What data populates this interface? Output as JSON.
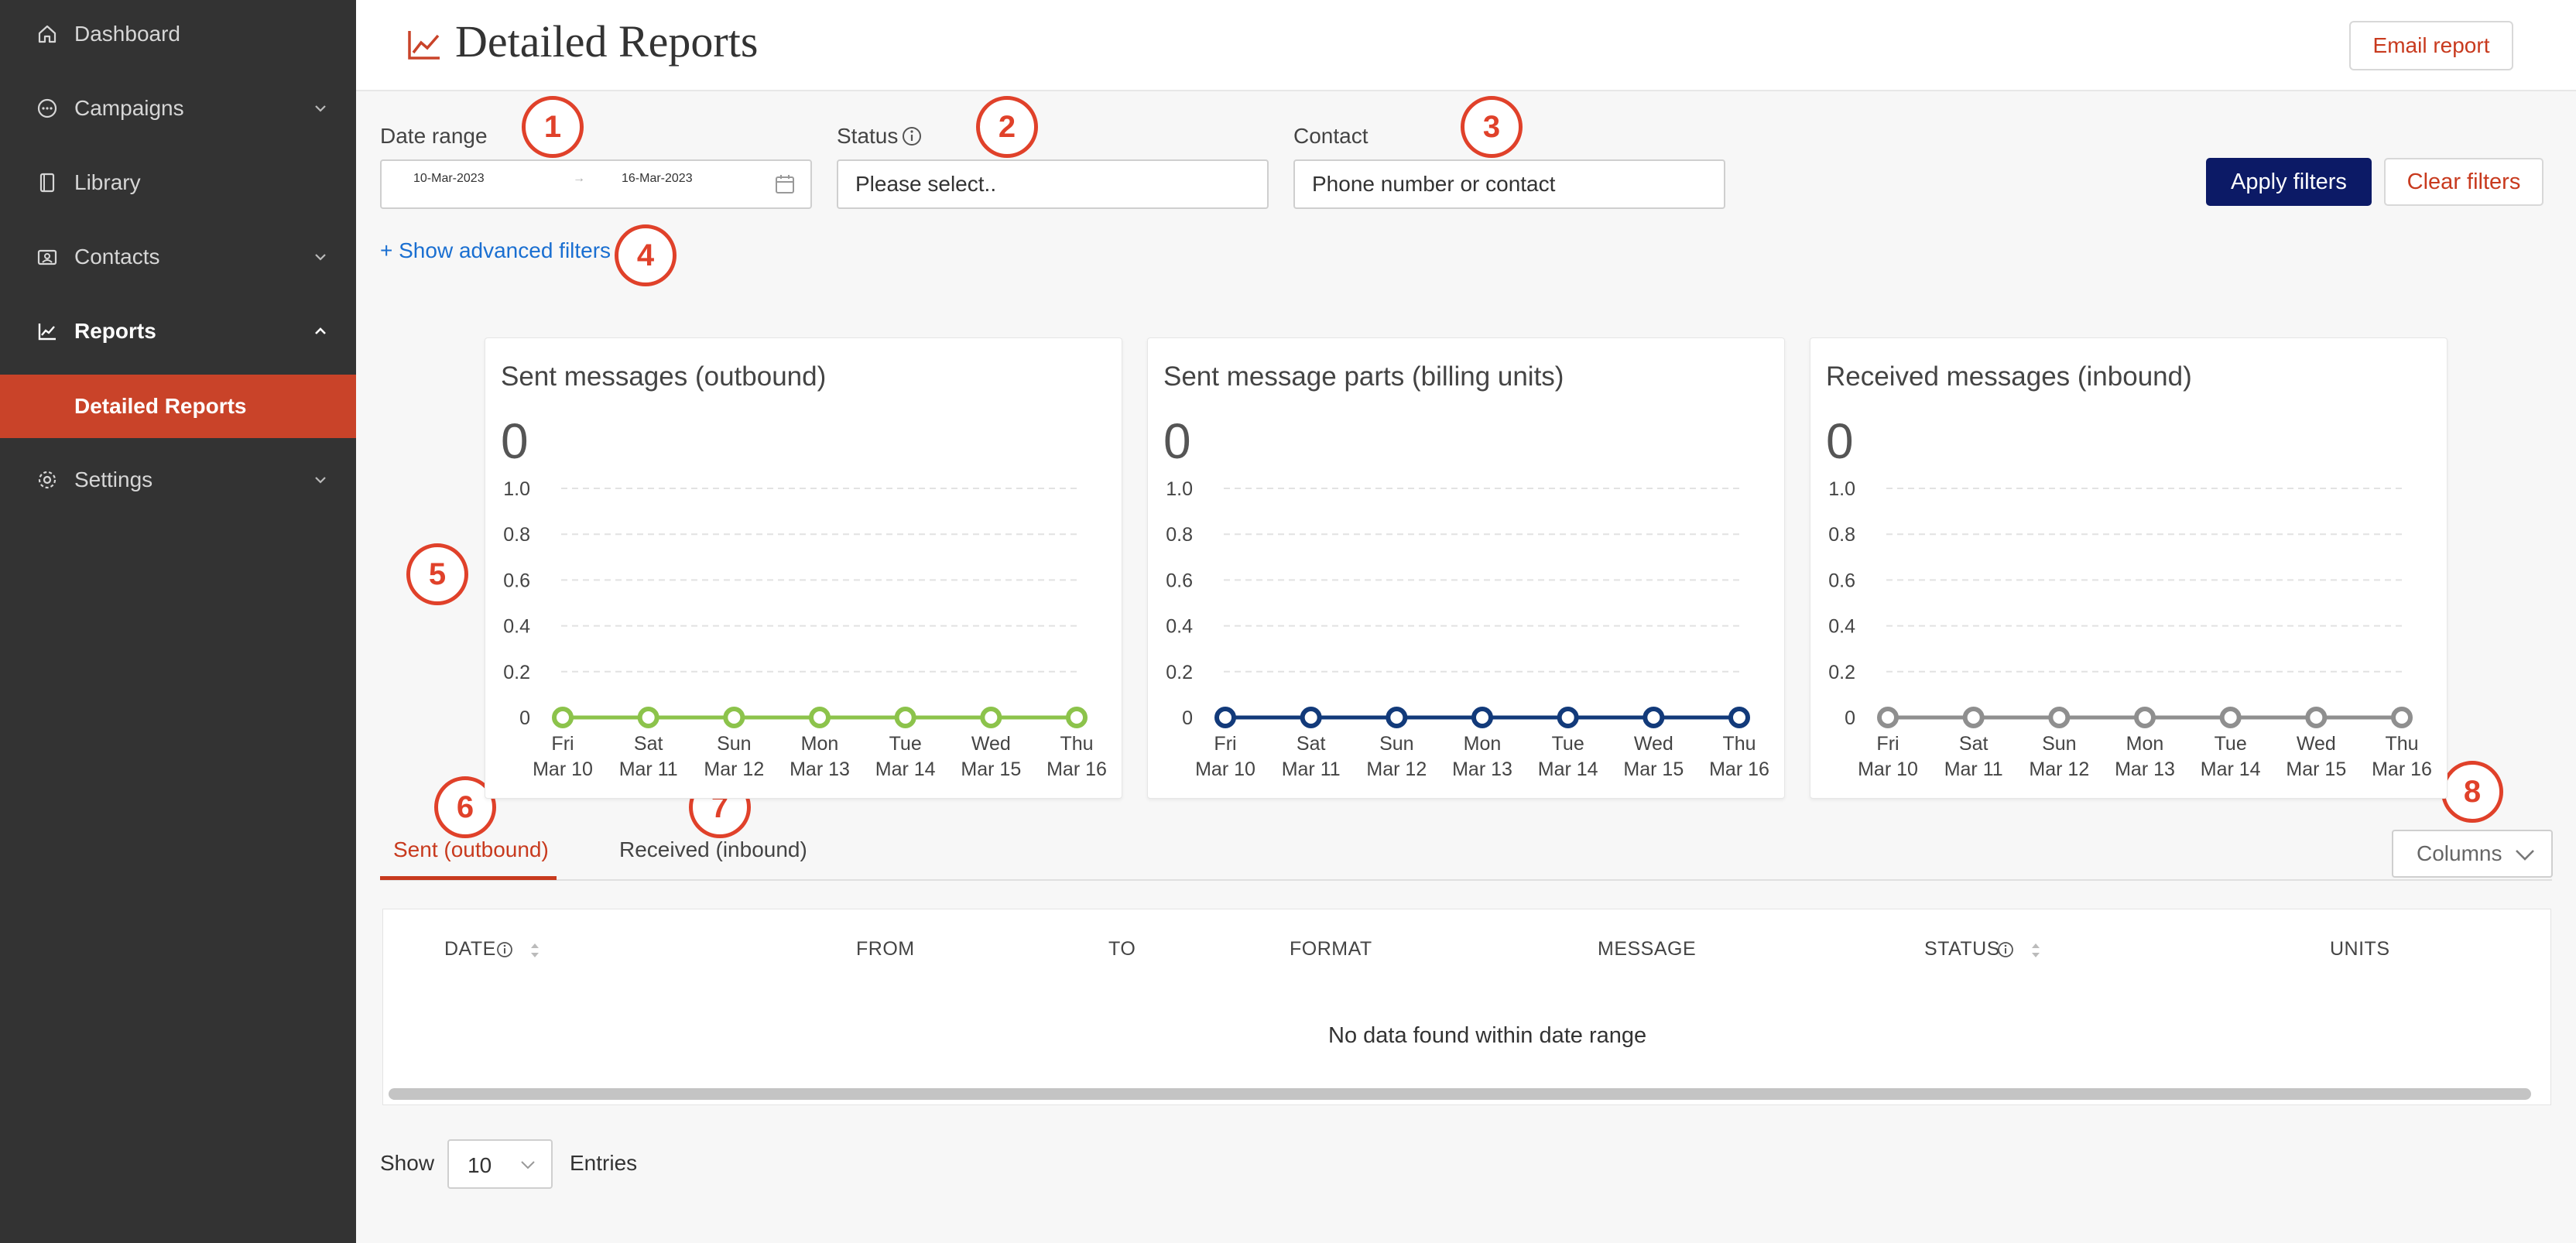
{
  "sidebar": {
    "items": [
      {
        "label": "Dashboard",
        "icon": "home-icon"
      },
      {
        "label": "Campaigns",
        "icon": "chat-icon"
      },
      {
        "label": "Library",
        "icon": "book-icon"
      },
      {
        "label": "Contacts",
        "icon": "contact-card-icon"
      },
      {
        "label": "Reports",
        "icon": "chart-line-icon"
      },
      {
        "label": "Settings",
        "icon": "gear-icon"
      }
    ],
    "sub_item": "Detailed Reports"
  },
  "header": {
    "title": "Detailed Reports",
    "email_button": "Email report"
  },
  "filters": {
    "date_label": "Date range",
    "date_start": "10-Mar-2023",
    "date_end": "16-Mar-2023",
    "date_arrow": "→",
    "status_label": "Status",
    "status_placeholder": "Please select..",
    "contact_label": "Contact",
    "contact_placeholder": "Phone number or contact",
    "advanced_link": "+ Show advanced filters",
    "apply_button": "Apply filters",
    "clear_button": "Clear filters"
  },
  "annotations": [
    "1",
    "2",
    "3",
    "4",
    "5",
    "6",
    "7",
    "8"
  ],
  "chart_data": [
    {
      "type": "line",
      "title": "Sent messages (outbound)",
      "total": "0",
      "x_days": [
        "Fri",
        "Sat",
        "Sun",
        "Mon",
        "Tue",
        "Wed",
        "Thu"
      ],
      "x_dates": [
        "Mar 10",
        "Mar 11",
        "Mar 12",
        "Mar 13",
        "Mar 14",
        "Mar 15",
        "Mar 16"
      ],
      "y_ticks": [
        "1.0",
        "0.8",
        "0.6",
        "0.4",
        "0.2",
        "0"
      ],
      "ylim": [
        0,
        1.0
      ],
      "series": [
        {
          "values": [
            0,
            0,
            0,
            0,
            0,
            0,
            0
          ],
          "color": "#8cc34b"
        }
      ]
    },
    {
      "type": "line",
      "title": "Sent message parts (billing units)",
      "total": "0",
      "x_days": [
        "Fri",
        "Sat",
        "Sun",
        "Mon",
        "Tue",
        "Wed",
        "Thu"
      ],
      "x_dates": [
        "Mar 10",
        "Mar 11",
        "Mar 12",
        "Mar 13",
        "Mar 14",
        "Mar 15",
        "Mar 16"
      ],
      "y_ticks": [
        "1.0",
        "0.8",
        "0.6",
        "0.4",
        "0.2",
        "0"
      ],
      "ylim": [
        0,
        1.0
      ],
      "series": [
        {
          "values": [
            0,
            0,
            0,
            0,
            0,
            0,
            0
          ],
          "color": "#123a7a"
        }
      ]
    },
    {
      "type": "line",
      "title": "Received messages (inbound)",
      "total": "0",
      "x_days": [
        "Fri",
        "Sat",
        "Sun",
        "Mon",
        "Tue",
        "Wed",
        "Thu"
      ],
      "x_dates": [
        "Mar 10",
        "Mar 11",
        "Mar 12",
        "Mar 13",
        "Mar 14",
        "Mar 15",
        "Mar 16"
      ],
      "y_ticks": [
        "1.0",
        "0.8",
        "0.6",
        "0.4",
        "0.2",
        "0"
      ],
      "ylim": [
        0,
        1.0
      ],
      "series": [
        {
          "values": [
            0,
            0,
            0,
            0,
            0,
            0,
            0
          ],
          "color": "#8f8f8f"
        }
      ]
    }
  ],
  "tabs": {
    "sent": "Sent (outbound)",
    "received": "Received (inbound)",
    "columns_button": "Columns"
  },
  "table": {
    "headers": [
      "DATE",
      "FROM",
      "TO",
      "FORMAT",
      "MESSAGE",
      "STATUS",
      "UNITS"
    ],
    "empty_message": "No data found within date range"
  },
  "footer": {
    "show_label": "Show",
    "entries_value": "10",
    "entries_label": "Entries"
  },
  "colors": {
    "sidebar_bg": "#333333",
    "accent": "#c94329",
    "primary_button": "#0c1a66",
    "link": "#1a6fd1"
  }
}
